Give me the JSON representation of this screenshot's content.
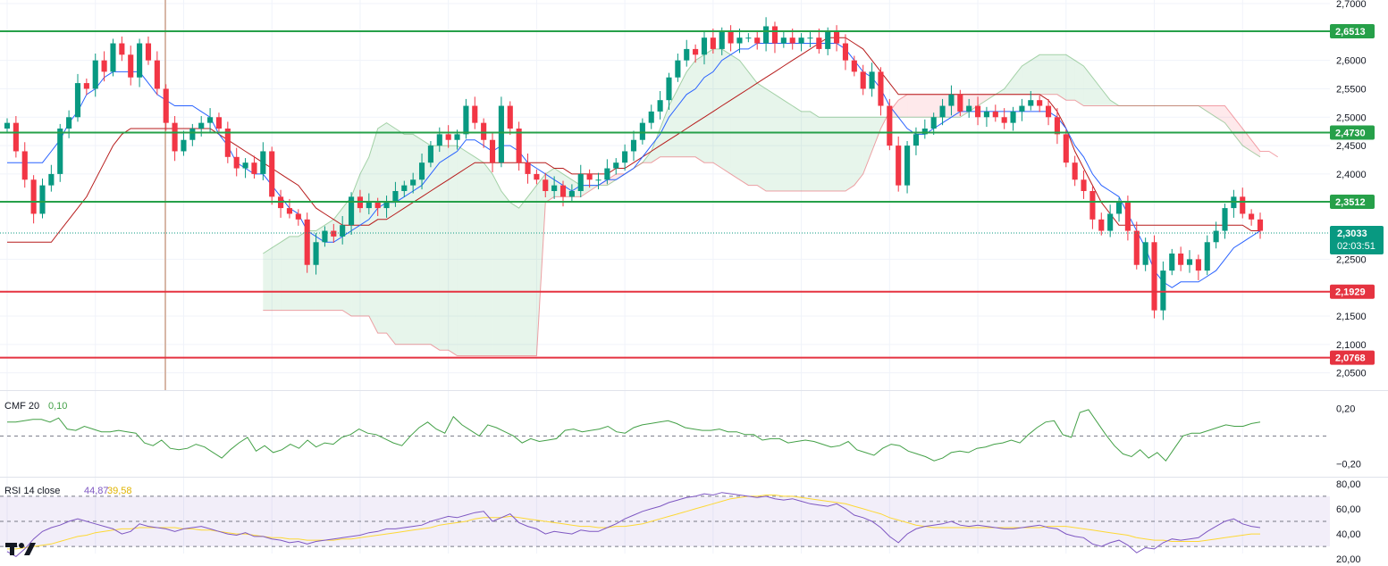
{
  "chart_data": [
    {
      "type": "candlestick",
      "panel": "price",
      "ylim": [
        2.04,
        2.7
      ],
      "y_ticks": [
        "2,7000",
        "2,6000",
        "2,5500",
        "2,5000",
        "2,4500",
        "2,4000",
        "2,2500",
        "2,1500",
        "2,1000",
        "2,0500"
      ],
      "levels": [
        {
          "value": 2.6513,
          "label": "2,6513",
          "color": "#26a049"
        },
        {
          "value": 2.473,
          "label": "2,4730",
          "color": "#26a049"
        },
        {
          "value": 2.3512,
          "label": "2,3512",
          "color": "#26a049"
        },
        {
          "value": 2.1929,
          "label": "2,1929",
          "color": "#e53340"
        },
        {
          "value": 2.0768,
          "label": "2,0768",
          "color": "#e53340"
        }
      ],
      "current": {
        "value": 2.3033,
        "label": "2,3033",
        "countdown": "02:03:51",
        "color": "#089981"
      },
      "colors": {
        "up": "#089981",
        "down": "#f23645",
        "tenkan": "#2962ff",
        "kijun": "#b71c1c",
        "cloud_bull": "#26a049",
        "cloud_bear": "#f23645"
      },
      "close": [
        2.49,
        2.44,
        2.39,
        2.33,
        2.38,
        2.4,
        2.48,
        2.5,
        2.56,
        2.55,
        2.6,
        2.58,
        2.63,
        2.61,
        2.57,
        2.63,
        2.6,
        2.55,
        2.49,
        2.44,
        2.46,
        2.48,
        2.49,
        2.5,
        2.48,
        2.43,
        2.41,
        2.42,
        2.4,
        2.44,
        2.36,
        2.34,
        2.33,
        2.32,
        2.24,
        2.28,
        2.3,
        2.29,
        2.31,
        2.36,
        2.34,
        2.35,
        2.34,
        2.35,
        2.37,
        2.38,
        2.39,
        2.42,
        2.45,
        2.47,
        2.46,
        2.47,
        2.52,
        2.49,
        2.46,
        2.42,
        2.52,
        2.48,
        2.42,
        2.4,
        2.39,
        2.37,
        2.38,
        2.36,
        2.37,
        2.4,
        2.39,
        2.39,
        2.41,
        2.42,
        2.44,
        2.46,
        2.49,
        2.51,
        2.53,
        2.57,
        2.6,
        2.62,
        2.61,
        2.64,
        2.62,
        2.65,
        2.63,
        2.64,
        2.64,
        2.63,
        2.66,
        2.63,
        2.64,
        2.63,
        2.64,
        2.64,
        2.62,
        2.65,
        2.63,
        2.6,
        2.58,
        2.55,
        2.58,
        2.52,
        2.45,
        2.38,
        2.45,
        2.47,
        2.48,
        2.5,
        2.52,
        2.54,
        2.51,
        2.52,
        2.5,
        2.51,
        2.5,
        2.49,
        2.51,
        2.52,
        2.53,
        2.52,
        2.5,
        2.47,
        2.42,
        2.39,
        2.37,
        2.32,
        2.3,
        2.33,
        2.35,
        2.3,
        2.24,
        2.28,
        2.16,
        2.23,
        2.26,
        2.24,
        2.25,
        2.23,
        2.28,
        2.3,
        2.34,
        2.36,
        2.33,
        2.32,
        2.3
      ],
      "tenkan": [
        2.42,
        2.42,
        2.42,
        2.42,
        2.42,
        2.44,
        2.46,
        2.49,
        2.51,
        2.54,
        2.55,
        2.57,
        2.58,
        2.58,
        2.58,
        2.58,
        2.56,
        2.54,
        2.53,
        2.52,
        2.52,
        2.52,
        2.51,
        2.5,
        2.47,
        2.45,
        2.42,
        2.41,
        2.4,
        2.4,
        2.38,
        2.36,
        2.34,
        2.33,
        2.3,
        2.29,
        2.28,
        2.28,
        2.29,
        2.3,
        2.31,
        2.32,
        2.34,
        2.35,
        2.35,
        2.36,
        2.37,
        2.38,
        2.4,
        2.42,
        2.43,
        2.44,
        2.46,
        2.46,
        2.45,
        2.44,
        2.45,
        2.45,
        2.44,
        2.42,
        2.41,
        2.4,
        2.39,
        2.38,
        2.37,
        2.38,
        2.38,
        2.38,
        2.39,
        2.39,
        2.4,
        2.41,
        2.43,
        2.45,
        2.47,
        2.5,
        2.52,
        2.54,
        2.55,
        2.57,
        2.58,
        2.6,
        2.61,
        2.62,
        2.62,
        2.63,
        2.63,
        2.63,
        2.63,
        2.63,
        2.63,
        2.63,
        2.63,
        2.63,
        2.63,
        2.62,
        2.6,
        2.58,
        2.57,
        2.55,
        2.52,
        2.5,
        2.48,
        2.47,
        2.47,
        2.48,
        2.49,
        2.5,
        2.51,
        2.51,
        2.51,
        2.51,
        2.51,
        2.51,
        2.51,
        2.51,
        2.51,
        2.51,
        2.51,
        2.5,
        2.48,
        2.45,
        2.43,
        2.4,
        2.38,
        2.37,
        2.36,
        2.33,
        2.3,
        2.27,
        2.23,
        2.21,
        2.2,
        2.21,
        2.21,
        2.21,
        2.22,
        2.23,
        2.25,
        2.27,
        2.28,
        2.29,
        2.3
      ],
      "kijun": [
        2.28,
        2.28,
        2.28,
        2.28,
        2.28,
        2.28,
        2.3,
        2.32,
        2.34,
        2.36,
        2.39,
        2.42,
        2.45,
        2.47,
        2.48,
        2.48,
        2.48,
        2.48,
        2.48,
        2.48,
        2.48,
        2.48,
        2.48,
        2.48,
        2.47,
        2.46,
        2.45,
        2.44,
        2.43,
        2.42,
        2.41,
        2.4,
        2.39,
        2.38,
        2.36,
        2.34,
        2.33,
        2.32,
        2.31,
        2.31,
        2.31,
        2.31,
        2.32,
        2.32,
        2.33,
        2.34,
        2.35,
        2.36,
        2.37,
        2.38,
        2.39,
        2.4,
        2.41,
        2.42,
        2.42,
        2.42,
        2.42,
        2.42,
        2.42,
        2.42,
        2.42,
        2.42,
        2.41,
        2.41,
        2.4,
        2.4,
        2.4,
        2.4,
        2.4,
        2.41,
        2.41,
        2.42,
        2.43,
        2.44,
        2.45,
        2.46,
        2.47,
        2.48,
        2.49,
        2.5,
        2.51,
        2.52,
        2.53,
        2.54,
        2.55,
        2.56,
        2.57,
        2.58,
        2.59,
        2.6,
        2.61,
        2.62,
        2.63,
        2.64,
        2.64,
        2.64,
        2.63,
        2.62,
        2.6,
        2.58,
        2.56,
        2.54,
        2.54,
        2.54,
        2.54,
        2.54,
        2.54,
        2.54,
        2.54,
        2.54,
        2.54,
        2.54,
        2.54,
        2.54,
        2.54,
        2.54,
        2.54,
        2.54,
        2.53,
        2.51,
        2.48,
        2.44,
        2.41,
        2.38,
        2.35,
        2.33,
        2.31,
        2.31,
        2.31,
        2.31,
        2.31,
        2.31,
        2.31,
        2.31,
        2.31,
        2.31,
        2.31,
        2.31,
        2.31,
        2.31,
        2.31,
        2.3,
        2.3
      ],
      "span_a": [
        null,
        null,
        null,
        null,
        null,
        null,
        null,
        null,
        null,
        null,
        null,
        null,
        null,
        null,
        null,
        null,
        null,
        null,
        null,
        null,
        null,
        null,
        null,
        null,
        null,
        null,
        null,
        null,
        null,
        2.26,
        2.27,
        2.28,
        2.29,
        2.29,
        2.3,
        2.3,
        2.31,
        2.32,
        2.34,
        2.36,
        2.4,
        2.43,
        2.48,
        2.49,
        2.48,
        2.47,
        2.47,
        2.46,
        2.45,
        2.45,
        2.45,
        2.45,
        2.44,
        2.43,
        2.42,
        2.4,
        2.37,
        2.35,
        2.34,
        2.36,
        2.38,
        2.4,
        2.41,
        2.4,
        2.39,
        2.38,
        2.38,
        2.38,
        2.38,
        2.39,
        2.4,
        2.41,
        2.42,
        2.44,
        2.48,
        2.52,
        2.55,
        2.58,
        2.6,
        2.61,
        2.62,
        2.62,
        2.61,
        2.6,
        2.58,
        2.56,
        2.55,
        2.54,
        2.53,
        2.52,
        2.51,
        2.51,
        2.5,
        2.5,
        2.5,
        2.5,
        2.5,
        2.5,
        2.5,
        2.5,
        2.5,
        2.5,
        2.5,
        2.5,
        2.5,
        2.5,
        2.5,
        2.5,
        2.5,
        2.51,
        2.52,
        2.53,
        2.54,
        2.55,
        2.57,
        2.59,
        2.6,
        2.61,
        2.61,
        2.61,
        2.61,
        2.6,
        2.59,
        2.57,
        2.55,
        2.53,
        2.52,
        2.52,
        2.52,
        2.52,
        2.52,
        2.52,
        2.52,
        2.52,
        2.52,
        2.52,
        2.51,
        2.5,
        2.49,
        2.47,
        2.45,
        2.44,
        2.43
      ],
      "span_b": [
        null,
        null,
        null,
        null,
        null,
        null,
        null,
        null,
        null,
        null,
        null,
        null,
        null,
        null,
        null,
        null,
        null,
        null,
        null,
        null,
        null,
        null,
        null,
        null,
        null,
        null,
        null,
        null,
        null,
        2.16,
        2.16,
        2.16,
        2.16,
        2.16,
        2.16,
        2.16,
        2.16,
        2.16,
        2.16,
        2.15,
        2.15,
        2.15,
        2.12,
        2.12,
        2.1,
        2.1,
        2.1,
        2.1,
        2.1,
        2.09,
        2.09,
        2.08,
        2.08,
        2.08,
        2.08,
        2.08,
        2.08,
        2.08,
        2.08,
        2.08,
        2.08,
        2.35,
        2.36,
        2.36,
        2.36,
        2.36,
        2.37,
        2.38,
        2.39,
        2.4,
        2.4,
        2.41,
        2.42,
        2.42,
        2.43,
        2.43,
        2.43,
        2.43,
        2.43,
        2.42,
        2.42,
        2.41,
        2.4,
        2.39,
        2.38,
        2.38,
        2.37,
        2.37,
        2.37,
        2.37,
        2.37,
        2.37,
        2.37,
        2.37,
        2.37,
        2.37,
        2.38,
        2.4,
        2.44,
        2.48,
        2.51,
        2.53,
        2.54,
        2.54,
        2.54,
        2.54,
        2.54,
        2.54,
        2.54,
        2.54,
        2.54,
        2.54,
        2.54,
        2.54,
        2.54,
        2.54,
        2.54,
        2.54,
        2.54,
        2.54,
        2.53,
        2.53,
        2.52,
        2.52,
        2.52,
        2.52,
        2.52,
        2.52,
        2.52,
        2.52,
        2.52,
        2.52,
        2.52,
        2.52,
        2.52,
        2.52,
        2.52,
        2.52,
        2.52,
        2.5,
        2.48,
        2.46,
        2.44,
        2.44,
        2.43
      ]
    },
    {
      "type": "line",
      "panel": "cmf",
      "legend_name": "CMF 20",
      "legend_value": "0,10",
      "ylim": [
        -0.25,
        0.28
      ],
      "y_ticks": [
        {
          "value": 0.2,
          "label": "0,20"
        },
        {
          "value": -0.2,
          "label": "−0,20"
        }
      ],
      "zero_line": 0,
      "color": "#43a047",
      "values": [
        0.1,
        0.1,
        0.11,
        0.12,
        0.12,
        0.1,
        0.13,
        0.05,
        0.04,
        0.07,
        0.05,
        0.03,
        0.03,
        0.04,
        0.03,
        0.02,
        -0.05,
        -0.07,
        -0.03,
        -0.09,
        -0.1,
        -0.09,
        -0.06,
        -0.08,
        -0.12,
        -0.16,
        -0.1,
        -0.05,
        -0.01,
        -0.11,
        -0.07,
        -0.12,
        -0.1,
        -0.06,
        -0.09,
        -0.03,
        -0.08,
        -0.05,
        -0.06,
        -0.01,
        0.01,
        0.05,
        0.02,
        0.01,
        -0.02,
        -0.05,
        -0.07,
        0.0,
        0.06,
        0.1,
        0.05,
        0.02,
        0.14,
        0.08,
        0.04,
        0.0,
        0.08,
        0.06,
        0.03,
        0.0,
        -0.05,
        -0.02,
        -0.04,
        -0.03,
        -0.02,
        0.04,
        0.05,
        0.03,
        0.04,
        0.05,
        0.07,
        0.03,
        0.02,
        0.06,
        0.08,
        0.09,
        0.1,
        0.11,
        0.09,
        0.06,
        0.05,
        0.04,
        0.04,
        0.05,
        0.03,
        0.03,
        0.01,
        0.01,
        -0.03,
        -0.02,
        -0.02,
        -0.05,
        -0.04,
        -0.03,
        -0.04,
        -0.06,
        -0.08,
        -0.07,
        -0.04,
        -0.1,
        -0.12,
        -0.14,
        -0.09,
        -0.06,
        -0.07,
        -0.11,
        -0.13,
        -0.15,
        -0.18,
        -0.16,
        -0.12,
        -0.11,
        -0.12,
        -0.09,
        -0.08,
        -0.06,
        -0.05,
        -0.03,
        -0.05,
        0.01,
        0.06,
        0.1,
        0.11,
        0.01,
        -0.01,
        0.17,
        0.19,
        0.1,
        0.01,
        -0.07,
        -0.13,
        -0.15,
        -0.1,
        -0.16,
        -0.12,
        -0.18,
        -0.09,
        0.0,
        0.02,
        0.02,
        0.04,
        0.06,
        0.08,
        0.07,
        0.07,
        0.09,
        0.1
      ]
    },
    {
      "type": "line",
      "panel": "rsi",
      "legend_name": "RSI 14 close",
      "legend_value": "44,87",
      "legend_ma_value": "39,58",
      "ylim": [
        18,
        82
      ],
      "y_ticks": [
        {
          "value": 80,
          "label": "80,00"
        },
        {
          "value": 60,
          "label": "60,00"
        },
        {
          "value": 40,
          "label": "40,00"
        },
        {
          "value": 20,
          "label": "20,00"
        }
      ],
      "bands": [
        70,
        50,
        30
      ],
      "color": "#7e57c2",
      "ma_color": "#fdd835",
      "values": [
        26,
        22,
        28,
        36,
        42,
        45,
        47,
        50,
        52,
        50,
        48,
        46,
        44,
        40,
        42,
        48,
        46,
        45,
        44,
        42,
        44,
        45,
        46,
        44,
        42,
        40,
        39,
        41,
        38,
        38,
        36,
        35,
        33,
        34,
        32,
        34,
        35,
        36,
        37,
        38,
        39,
        41,
        42,
        44,
        44,
        45,
        46,
        47,
        50,
        52,
        54,
        53,
        55,
        57,
        58,
        50,
        53,
        56,
        49,
        46,
        44,
        40,
        42,
        41,
        40,
        43,
        42,
        42,
        45,
        48,
        52,
        55,
        58,
        60,
        62,
        65,
        67,
        69,
        70,
        72,
        71,
        73,
        72,
        71,
        70,
        69,
        70,
        68,
        67,
        68,
        66,
        64,
        63,
        62,
        64,
        60,
        55,
        53,
        50,
        45,
        38,
        33,
        40,
        44,
        46,
        47,
        48,
        50,
        47,
        46,
        47,
        46,
        45,
        44,
        44,
        45,
        46,
        47,
        45,
        44,
        40,
        38,
        37,
        32,
        30,
        33,
        35,
        31,
        25,
        29,
        28,
        33,
        36,
        35,
        36,
        37,
        42,
        46,
        50,
        52,
        48,
        46,
        45
      ],
      "ma_values": [
        28,
        28,
        29,
        30,
        31,
        32,
        34,
        36,
        38,
        39,
        41,
        42,
        43,
        44,
        44,
        45,
        45,
        45,
        45,
        45,
        44,
        44,
        43,
        43,
        42,
        41,
        40,
        40,
        39,
        38,
        37,
        37,
        36,
        36,
        35,
        35,
        35,
        35,
        36,
        36,
        37,
        38,
        39,
        40,
        41,
        42,
        43,
        44,
        45,
        47,
        48,
        49,
        50,
        52,
        53,
        53,
        53,
        54,
        53,
        52,
        51,
        50,
        49,
        48,
        47,
        46,
        46,
        45,
        45,
        46,
        46,
        47,
        48,
        50,
        52,
        54,
        56,
        58,
        60,
        62,
        64,
        66,
        68,
        69,
        70,
        70,
        71,
        71,
        70,
        70,
        69,
        68,
        67,
        66,
        65,
        64,
        62,
        60,
        58,
        56,
        53,
        51,
        49,
        47,
        46,
        45,
        45,
        45,
        45,
        45,
        45,
        45,
        45,
        45,
        45,
        45,
        45,
        45,
        46,
        46,
        46,
        45,
        44,
        43,
        42,
        41,
        40,
        39,
        37,
        36,
        35,
        35,
        34,
        34,
        34,
        34,
        35,
        36,
        37,
        38,
        39,
        40,
        40
      ]
    }
  ]
}
